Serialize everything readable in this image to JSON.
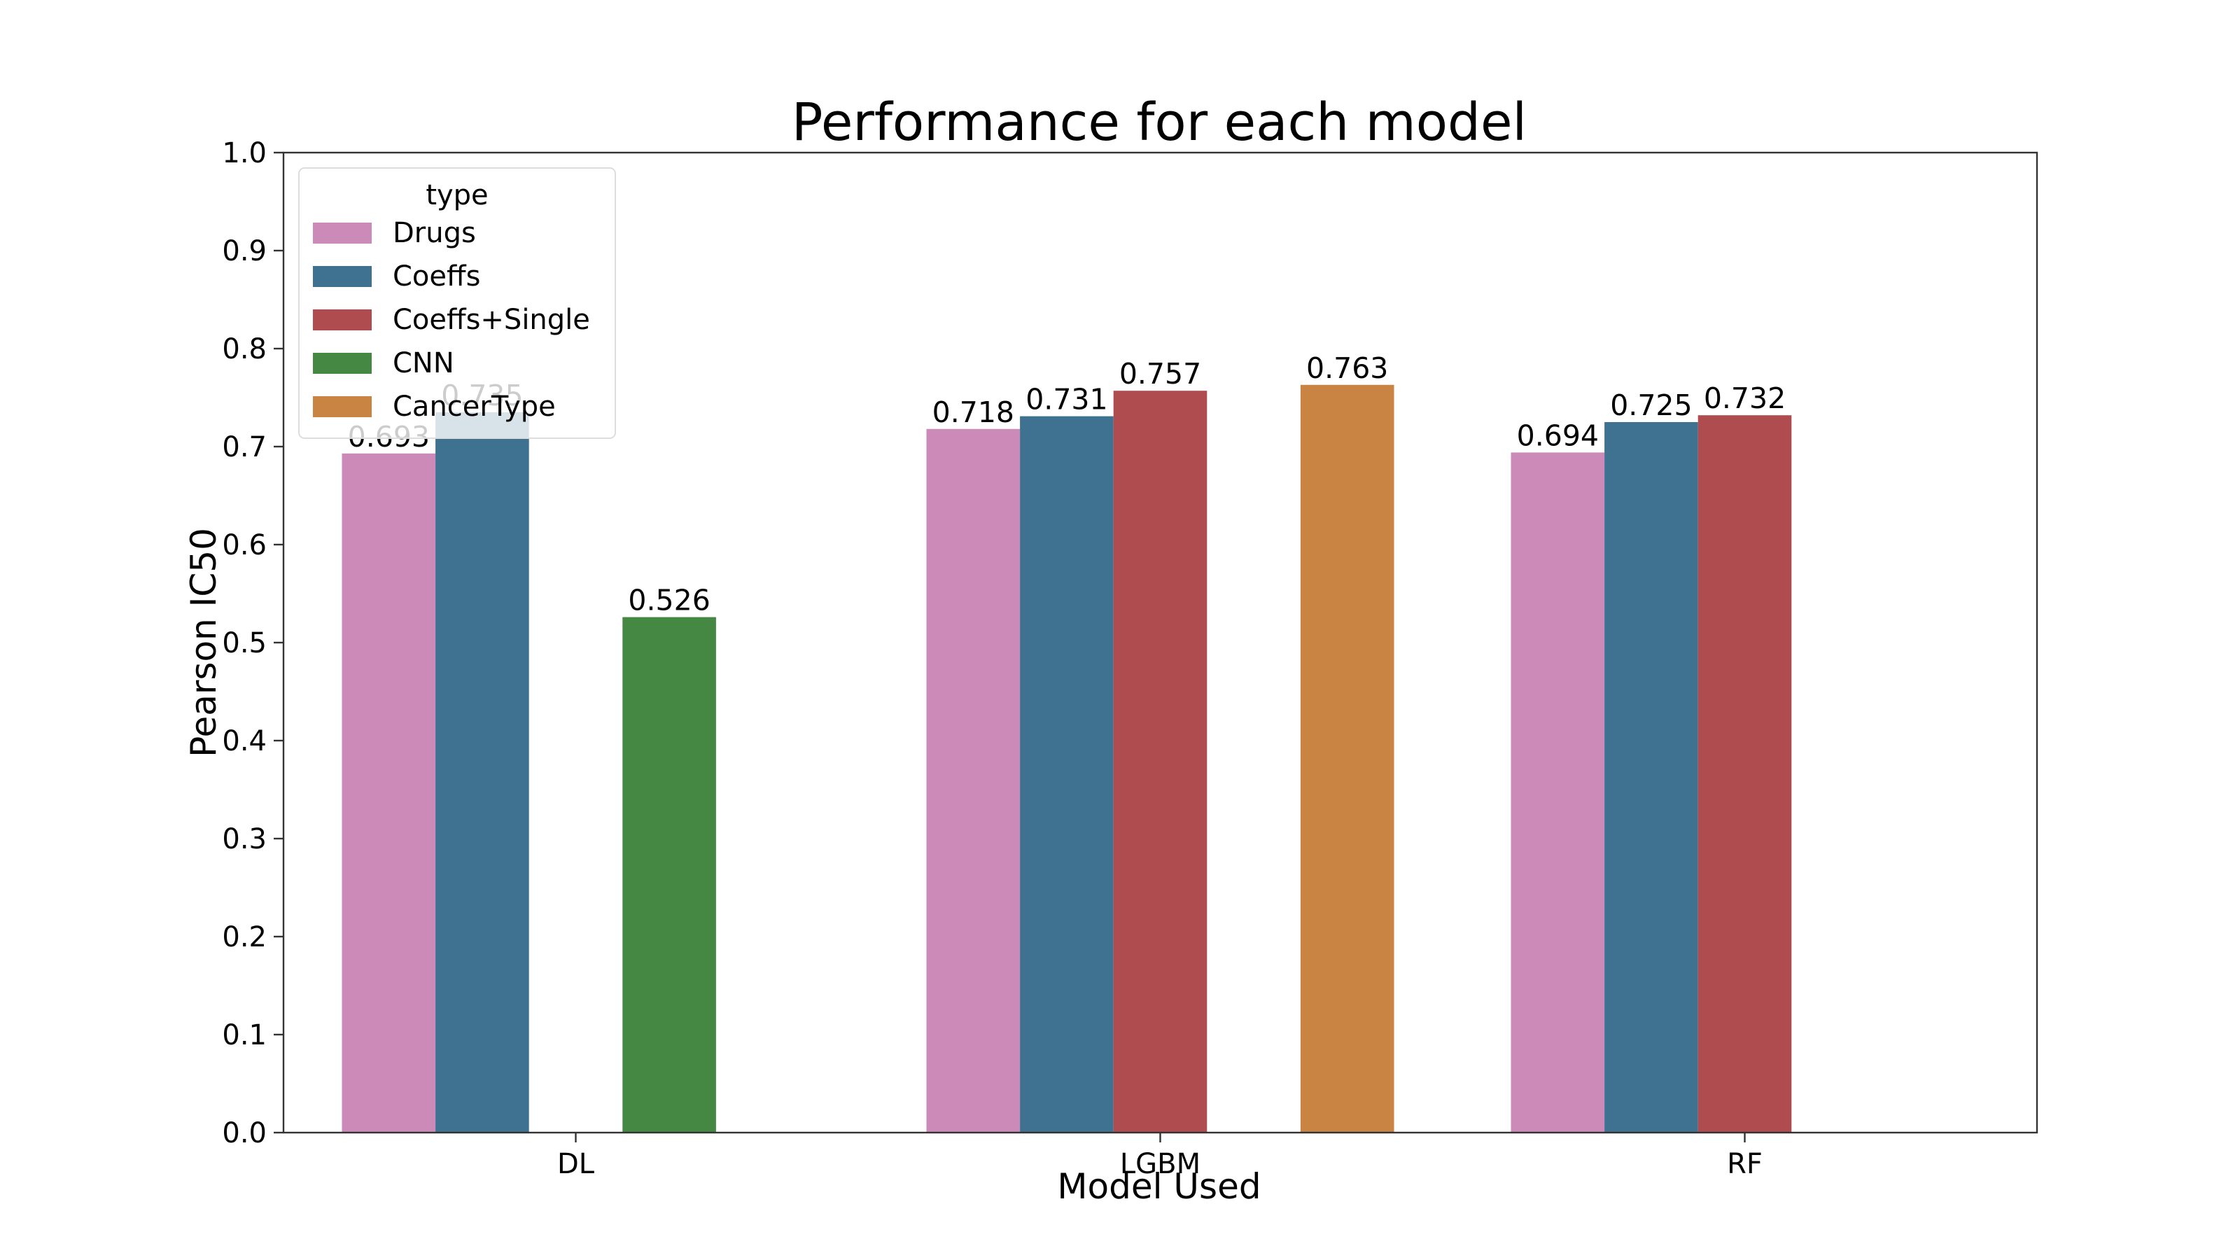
{
  "chart_data": {
    "type": "bar",
    "title": "Performance for each model",
    "xlabel": "Model Used",
    "ylabel": "Pearson IC50",
    "ylim": [
      0,
      1.0
    ],
    "yticks": [
      "0.0",
      "0.1",
      "0.2",
      "0.3",
      "0.4",
      "0.5",
      "0.6",
      "0.7",
      "0.8",
      "0.9",
      "1.0"
    ],
    "grid": false,
    "categories": [
      "DL",
      "LGBM",
      "RF"
    ],
    "legend": {
      "title": "type",
      "placement": "top-left"
    },
    "series": [
      {
        "name": "Drugs",
        "color": "#cc8ab8",
        "values": [
          0.693,
          0.718,
          0.694
        ],
        "labels": [
          "0.693",
          "0.718",
          "0.694"
        ]
      },
      {
        "name": "Coeffs",
        "color": "#3f7191",
        "values": [
          0.735,
          0.731,
          0.725
        ],
        "labels": [
          "0.735",
          "0.731",
          "0.725"
        ]
      },
      {
        "name": "Coeffs+Single",
        "color": "#af4c4f",
        "values": [
          null,
          0.757,
          0.732
        ],
        "labels": [
          "",
          "0.757",
          "0.732"
        ]
      },
      {
        "name": "CNN",
        "color": "#448844",
        "values": [
          0.526,
          null,
          null
        ],
        "labels": [
          "0.526",
          "",
          ""
        ]
      },
      {
        "name": "CancerType",
        "color": "#c98342",
        "values": [
          null,
          0.763,
          null
        ],
        "labels": [
          "",
          "0.763",
          ""
        ]
      }
    ]
  }
}
